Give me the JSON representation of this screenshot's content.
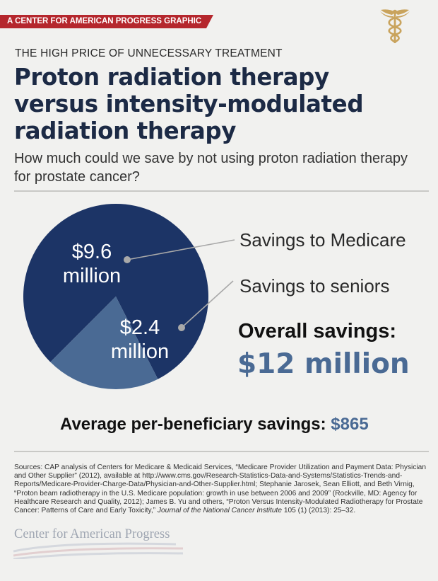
{
  "banner": "A CENTER FOR AMERICAN PROGRESS GRAPHIC",
  "kicker": "THE HIGH PRICE OF UNNECESSARY TREATMENT",
  "title_lines": [
    "Proton radiation therapy",
    "versus intensity-modulated",
    "radiation therapy"
  ],
  "subtitle": "How much could we save by not using proton radiation therapy for prostate cancer?",
  "chart_data": {
    "type": "pie",
    "unit": "$ million",
    "slices": [
      {
        "name": "Savings to Medicare",
        "value": 9.6,
        "label_lines": [
          "$9.6",
          "million"
        ],
        "color": "#1c3466"
      },
      {
        "name": "Savings to seniors",
        "value": 2.4,
        "label_lines": [
          "$2.4",
          "million"
        ],
        "color": "#4a6a94"
      }
    ],
    "legend": [
      "Savings to Medicare",
      "Savings to seniors"
    ]
  },
  "overall_label": "Overall savings:",
  "overall_value": "$12 million",
  "average_label": "Average per-beneficiary savings:",
  "average_value": "$865",
  "sources": {
    "p1": "Sources: CAP analysis of Centers for Medicare & Medicaid Services, “Medicare Provider Utilization and Payment Data: Physician and Other Supplier” (2012), available at http://www.cms.gov/Research-Statistics-Data-and-Systems/Statistics-Trends-and-Reports/Medicare-Provider-Charge-Data/Physician-and-Other-Supplier.html; Stephanie Jarosek, Sean Elliott, and Beth Virnig, “Proton beam radiotherapy in the U.S. Medicare population: growth in use between 2006 and 2009” (Rockville, MD: Agency for Healthcare Research and Quality, 2012); James B. Yu and others, “Proton Versus Intensity-Modulated Radiotherapy for Prostate Cancer: Patterns of Care and Early Toxicity,” ",
    "journal": "Journal of the National Cancer Institute",
    "p2": " 105 (1) (2013): 25–32."
  },
  "footer_logo_text": "Center for American Progress",
  "colors": {
    "navy": "#1c3466",
    "steel": "#4a6a94",
    "banner_red": "#b5272d",
    "logo_gold": "#c9a35c"
  }
}
